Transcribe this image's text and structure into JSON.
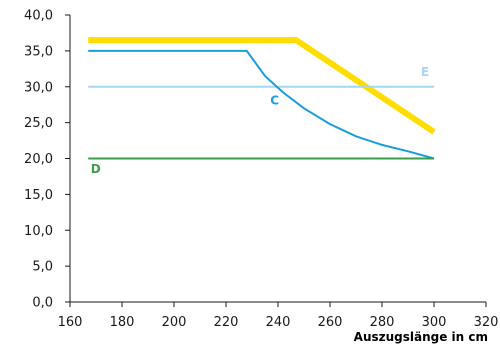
{
  "chart_data": {
    "type": "line",
    "title": "",
    "xlabel": "Auszugslänge in cm",
    "ylabel": "",
    "xlim": [
      160,
      320
    ],
    "ylim": [
      0,
      40
    ],
    "x_ticks": [
      160,
      180,
      200,
      220,
      240,
      260,
      280,
      300,
      320
    ],
    "y_ticks": [
      0,
      5,
      10,
      15,
      20,
      25,
      30,
      35,
      40
    ],
    "x_tick_labels": [
      "160",
      "180",
      "200",
      "220",
      "240",
      "260",
      "280",
      "300",
      "320"
    ],
    "y_tick_labels": [
      "0,0",
      "5,0",
      "10,0",
      "15,0",
      "20,0",
      "25,0",
      "30,0",
      "35,0",
      "40,0"
    ],
    "grid": false,
    "legend": "none",
    "series": [
      {
        "name": "",
        "color": "#ffdd00",
        "x": [
          167,
          247,
          300
        ],
        "y": [
          36.5,
          36.5,
          23.7
        ]
      },
      {
        "name": "E",
        "color": "#a6d6f0",
        "x": [
          167,
          300
        ],
        "y": [
          30.0,
          30.0
        ]
      },
      {
        "name": "C",
        "color": "#1a9ddb",
        "x": [
          167,
          228,
          235,
          242,
          250,
          260,
          270,
          280,
          290,
          300
        ],
        "y": [
          35.0,
          35.0,
          31.5,
          29.2,
          27.0,
          24.8,
          23.1,
          21.9,
          21.0,
          20.0
        ]
      },
      {
        "name": "D",
        "color": "#3a9e4a",
        "x": [
          167,
          300
        ],
        "y": [
          20.0,
          20.0
        ]
      }
    ],
    "annotations": [
      {
        "text": "E",
        "x": 295,
        "y": 31.5,
        "color": "#a6d6f0"
      },
      {
        "text": "C",
        "x": 237,
        "y": 27.5,
        "color": "#1a9ddb"
      },
      {
        "text": "D",
        "x": 168,
        "y": 18.0,
        "color": "#3a9e4a"
      }
    ]
  }
}
